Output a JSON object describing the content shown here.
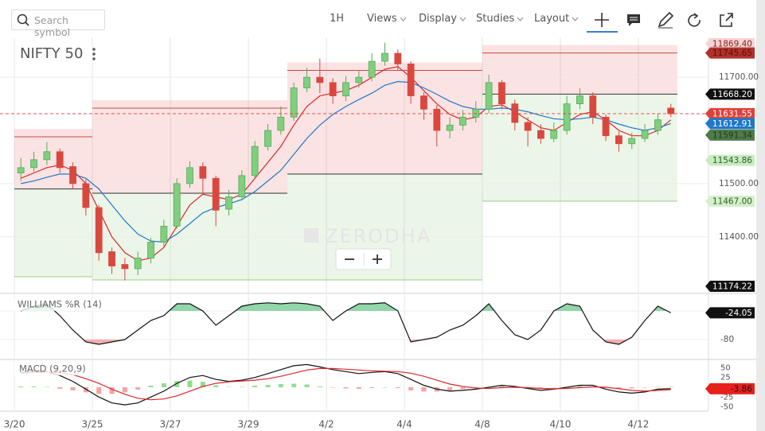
{
  "toolbar": {
    "search_placeholder": "Search symbol",
    "interval": "1H",
    "menus": [
      "Views",
      "Display",
      "Studies",
      "Layout"
    ]
  },
  "watermark": "ZERODHA",
  "chart_data": [
    {
      "type": "candlestick",
      "title": "NIFTY 50",
      "categories": [
        "3/20",
        null,
        null,
        null,
        null,
        null,
        "3/25",
        null,
        null,
        null,
        null,
        null,
        "3/27",
        null,
        null,
        null,
        null,
        null,
        "3/29",
        null,
        null,
        null,
        null,
        null,
        "4/2",
        null,
        null,
        null,
        null,
        null,
        "4/4",
        null,
        null,
        null,
        null,
        null,
        "4/8",
        null,
        null,
        null,
        null,
        null,
        "4/10",
        null,
        null,
        null,
        null,
        null,
        "4/12",
        null,
        null
      ],
      "open": [
        11520,
        11530,
        11545,
        11560,
        11532,
        11500,
        11455,
        11372,
        11348,
        11340,
        11360,
        11390,
        11420,
        11500,
        11532,
        11510,
        11452,
        11475,
        11515,
        11570,
        11600,
        11625,
        11680,
        11700,
        11690,
        11665,
        11690,
        11700,
        11730,
        11745,
        11725,
        11665,
        11640,
        11600,
        11610,
        11625,
        11640,
        11690,
        11650,
        11615,
        11600,
        11585,
        11600,
        11650,
        11665,
        11625,
        11590,
        11575,
        11585,
        11600,
        11642
      ],
      "high": [
        11548,
        11560,
        11578,
        11566,
        11540,
        11508,
        11460,
        11380,
        11360,
        11372,
        11398,
        11432,
        11510,
        11542,
        11540,
        11515,
        11488,
        11525,
        11580,
        11612,
        11645,
        11690,
        11718,
        11735,
        11698,
        11702,
        11712,
        11745,
        11765,
        11752,
        11730,
        11672,
        11648,
        11625,
        11638,
        11655,
        11705,
        11695,
        11658,
        11625,
        11612,
        11615,
        11665,
        11680,
        11672,
        11630,
        11598,
        11596,
        11612,
        11632,
        11650
      ],
      "low": [
        11505,
        11522,
        11535,
        11520,
        11490,
        11440,
        11355,
        11330,
        11318,
        11328,
        11350,
        11382,
        11415,
        11492,
        11480,
        11420,
        11440,
        11468,
        11510,
        11562,
        11592,
        11618,
        11672,
        11670,
        11650,
        11655,
        11680,
        11692,
        11722,
        11712,
        11650,
        11620,
        11570,
        11585,
        11600,
        11615,
        11632,
        11640,
        11600,
        11570,
        11575,
        11578,
        11592,
        11640,
        11612,
        11580,
        11560,
        11565,
        11578,
        11592,
        11625
      ],
      "close": [
        11530,
        11545,
        11560,
        11530,
        11500,
        11455,
        11370,
        11345,
        11340,
        11360,
        11390,
        11420,
        11500,
        11530,
        11510,
        11450,
        11475,
        11515,
        11570,
        11600,
        11625,
        11680,
        11700,
        11690,
        11665,
        11690,
        11700,
        11730,
        11745,
        11725,
        11665,
        11640,
        11600,
        11610,
        11625,
        11640,
        11690,
        11650,
        11615,
        11600,
        11585,
        11600,
        11650,
        11665,
        11625,
        11590,
        11575,
        11585,
        11600,
        11620,
        11631.55
      ],
      "up_color": "#7fcf7f",
      "down_color": "#d9483f",
      "last_color": "#e0403a",
      "overlays": [
        {
          "color": "#e0262a",
          "values": [
            11510,
            11520,
            11530,
            11535,
            11525,
            11500,
            11450,
            11400,
            11370,
            11355,
            11360,
            11380,
            11420,
            11460,
            11480,
            11475,
            11470,
            11480,
            11510,
            11540,
            11570,
            11610,
            11645,
            11665,
            11670,
            11675,
            11685,
            11700,
            11715,
            11720,
            11700,
            11675,
            11650,
            11630,
            11620,
            11625,
            11645,
            11648,
            11635,
            11620,
            11605,
            11600,
            11615,
            11630,
            11635,
            11620,
            11600,
            11590,
            11590,
            11600,
            11620
          ]
        },
        {
          "color": "#1f78c8",
          "values": [
            11500,
            11505,
            11512,
            11518,
            11518,
            11510,
            11490,
            11460,
            11430,
            11405,
            11392,
            11390,
            11405,
            11425,
            11445,
            11455,
            11462,
            11470,
            11485,
            11505,
            11525,
            11555,
            11585,
            11610,
            11630,
            11645,
            11658,
            11670,
            11685,
            11692,
            11690,
            11680,
            11668,
            11655,
            11645,
            11640,
            11640,
            11642,
            11640,
            11635,
            11628,
            11622,
            11620,
            11622,
            11625,
            11620,
            11612,
            11605,
            11600,
            11605,
            11612.91
          ]
        }
      ],
      "zones": [
        {
          "from": 0,
          "to": 5,
          "upper": 11588,
          "pivot": 11490,
          "lower": 11325
        },
        {
          "from": 6,
          "to": 20,
          "upper": 11642,
          "pivot": 11482,
          "lower": 11319
        },
        {
          "from": 21,
          "to": 35,
          "upper": 11713,
          "pivot": 11518,
          "lower": 11319
        },
        {
          "from": 36,
          "to": 50,
          "upper": 11745.65,
          "pivot": 11668.2,
          "lower": 11467
        }
      ],
      "price_tags": [
        {
          "value": 11869.4,
          "label": "11869.40",
          "color": "#f6d4d4",
          "text_color": "#8b1a1a"
        },
        {
          "value": 11745.65,
          "color": "#b0322b",
          "text_color": "#5a0d0d"
        },
        {
          "value": 11668.2,
          "label": "11668.20",
          "color": "#111111",
          "text_color": "#ffffff"
        },
        {
          "value": 11591.34,
          "color": "#4f7a4a",
          "text_color": "#1d3a1a"
        },
        {
          "value": 11543.86,
          "color": "#c8ecc0",
          "text_color": "#2d5a28"
        },
        {
          "value": 11467,
          "label": "11467.00",
          "color": "#d4f0cc",
          "text_color": "#2d5a28"
        },
        {
          "value": 11174.22,
          "color": "#111111",
          "text_color": "#ffffff"
        }
      ],
      "ylim": [
        11295,
        11775
      ],
      "yticks": [
        {
          "value": 11400,
          "label": "11400.00"
        },
        {
          "value": 11500,
          "label": "11500.00"
        },
        {
          "value": 11700,
          "label": "11700.00"
        }
      ],
      "grid": true
    },
    {
      "type": "oscillator",
      "title": "WILLIAMS %R (14)",
      "color": "#111111",
      "values": [
        -20,
        -10,
        -5,
        -30,
        -60,
        -85,
        -90,
        -85,
        -80,
        -60,
        -40,
        -30,
        -5,
        -5,
        -20,
        -50,
        -30,
        -10,
        -5,
        -3,
        -5,
        -3,
        -5,
        -10,
        -40,
        -20,
        -5,
        -5,
        -3,
        -20,
        -85,
        -80,
        -75,
        -60,
        -50,
        -30,
        -5,
        -40,
        -70,
        -80,
        -60,
        -20,
        -5,
        -10,
        -60,
        -85,
        -90,
        -75,
        -40,
        -10,
        -24.05
      ],
      "levels": [
        -20,
        -80
      ],
      "level_colors": [
        "#7fcf9a",
        "#f0a0a8"
      ],
      "ylim": [
        -100,
        0
      ],
      "yticks": [
        -80
      ]
    },
    {
      "type": "macd",
      "title": "MACD (9,20,9)",
      "series": [
        {
          "color": "#111111",
          "values": [
            38,
            42,
            40,
            30,
            15,
            -5,
            -25,
            -40,
            -45,
            -40,
            -25,
            -10,
            10,
            25,
            30,
            20,
            15,
            18,
            25,
            35,
            45,
            55,
            58,
            52,
            45,
            40,
            35,
            38,
            40,
            35,
            20,
            5,
            -5,
            -10,
            -8,
            -5,
            0,
            5,
            2,
            -3,
            -8,
            -5,
            0,
            5,
            5,
            -5,
            -12,
            -15,
            -12,
            -5,
            -3.86
          ]
        },
        {
          "color": "#e0262a",
          "values": [
            35,
            38,
            39,
            37,
            32,
            22,
            10,
            -5,
            -18,
            -28,
            -32,
            -30,
            -22,
            -10,
            2,
            10,
            14,
            16,
            18,
            22,
            28,
            36,
            44,
            48,
            48,
            46,
            44,
            42,
            41,
            40,
            36,
            28,
            18,
            8,
            2,
            -2,
            -3,
            -1,
            0,
            -1,
            -3,
            -4,
            -3,
            -1,
            1,
            0,
            -4,
            -8,
            -10,
            -8,
            -6
          ]
        }
      ],
      "histogram": {
        "values": [
          2,
          2,
          1,
          -4,
          -8,
          -13,
          -17,
          -17,
          -13,
          -6,
          4,
          10,
          16,
          17,
          14,
          5,
          1,
          1,
          4,
          6,
          8,
          9,
          7,
          2,
          -1,
          -3,
          -4,
          -2,
          0,
          -2,
          -8,
          -11,
          -11,
          -9,
          -5,
          -1,
          1,
          3,
          1,
          -1,
          -2,
          -1,
          1,
          3,
          2,
          -2,
          -4,
          -3,
          -1,
          1,
          1
        ],
        "up_color": "#8fdf8f",
        "down_color": "#f4a3a3"
      },
      "tag_color": "#e8201c",
      "ylim": [
        -59,
        65
      ],
      "yticks": [
        50,
        25,
        -25,
        -50
      ]
    }
  ]
}
